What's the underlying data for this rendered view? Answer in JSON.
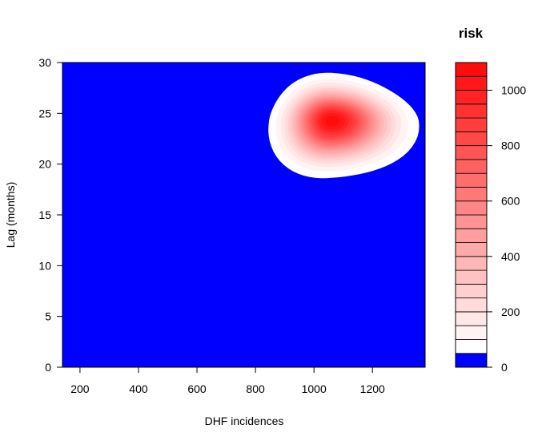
{
  "chart_data": {
    "type": "heatmap",
    "xlabel": "DHF incidences",
    "ylabel": "Lag (months)",
    "legend_title": "risk",
    "xlim": [
      140,
      1380
    ],
    "ylim": [
      0,
      30
    ],
    "x_ticks": [
      200,
      400,
      600,
      800,
      1000,
      1200
    ],
    "x_tick_labels": [
      "200",
      "400",
      "600",
      "800",
      "1000",
      "1200"
    ],
    "y_ticks": [
      0,
      5,
      10,
      15,
      20,
      25,
      30
    ],
    "y_tick_labels": [
      "0",
      "5",
      "10",
      "15",
      "20",
      "25",
      "30"
    ],
    "legend_range": [
      0,
      1100
    ],
    "legend_ticks": [
      0,
      200,
      400,
      600,
      800,
      1000
    ],
    "legend_tick_labels": [
      "0",
      "200",
      "400",
      "600",
      "800",
      "1000"
    ],
    "levels": [
      0,
      50,
      100,
      150,
      200,
      250,
      300,
      350,
      400,
      450,
      500,
      550,
      600,
      650,
      700,
      750,
      800,
      850,
      900,
      950,
      1000,
      1050,
      1100
    ],
    "low_color": "#0000ff",
    "high_color": "#ff0000",
    "background_level_color": "#0000ff",
    "risk_peak": {
      "x": 1060,
      "y": 24.3,
      "value": 1080
    },
    "risk_region": {
      "x_range": [
        840,
        1350
      ],
      "y_range": [
        18.4,
        28.8
      ]
    }
  }
}
